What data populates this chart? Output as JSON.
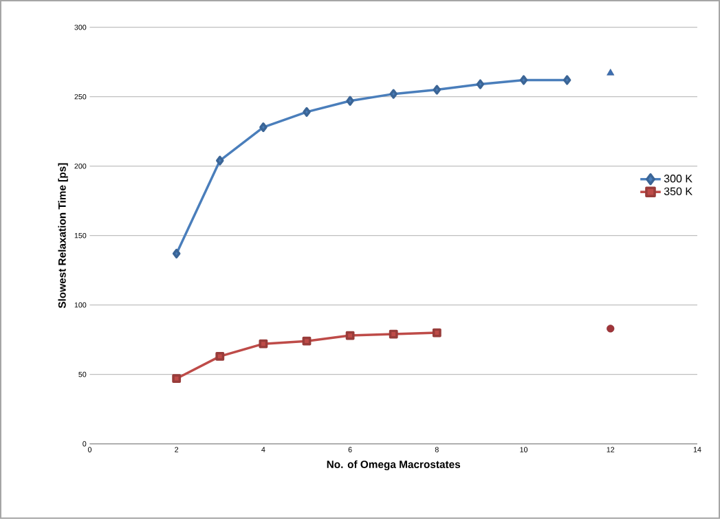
{
  "chart_data": {
    "type": "line",
    "xlabel": "No. of Omega Macrostates",
    "ylabel": "Slowest Relaxation Time [ps]",
    "xlim": [
      0,
      14
    ],
    "xticks": [
      0,
      2,
      4,
      6,
      8,
      10,
      12,
      14
    ],
    "ylim": [
      0,
      300
    ],
    "yticks": [
      0,
      50,
      100,
      150,
      200,
      250,
      300
    ],
    "grid": "y",
    "legend": "right",
    "line_style": "solid",
    "series": [
      {
        "name": "300 K",
        "color": "#4a7ebb",
        "marker": "diamond",
        "x": [
          2,
          3,
          4,
          5,
          6,
          7,
          8,
          9,
          10,
          11
        ],
        "values": [
          137,
          204,
          228,
          239,
          247,
          252,
          255,
          259,
          262,
          262
        ]
      },
      {
        "name": "350 K",
        "color": "#be4b48",
        "marker": "square",
        "x": [
          2,
          3,
          4,
          5,
          6,
          7,
          8
        ],
        "values": [
          47,
          63,
          72,
          74,
          78,
          79,
          80
        ]
      },
      {
        "type": "scatter",
        "color": "#3d6eb0",
        "marker": "triangle",
        "x": [
          12
        ],
        "values": [
          267
        ]
      },
      {
        "type": "scatter",
        "color": "#a0353a",
        "marker": "circle",
        "x": [
          12
        ],
        "values": [
          83
        ]
      }
    ]
  }
}
